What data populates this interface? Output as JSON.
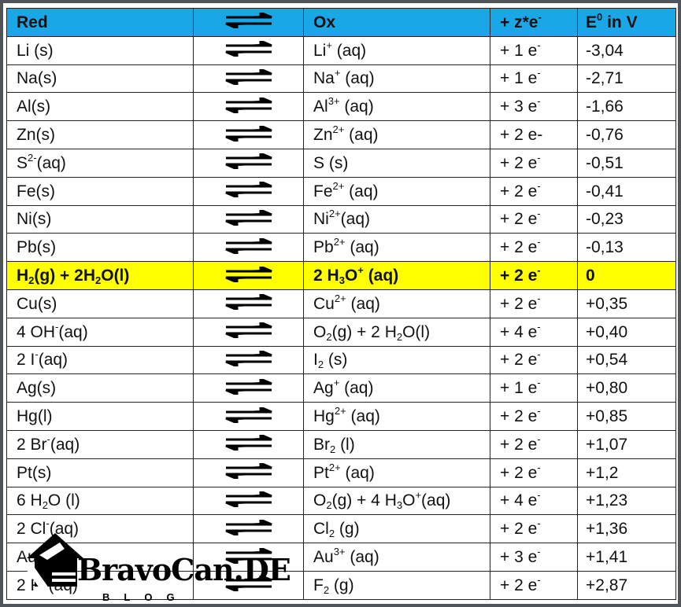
{
  "header": {
    "red": [
      {
        "t": "Red"
      }
    ],
    "ox": [
      {
        "t": "Ox"
      }
    ],
    "z": [
      {
        "t": "+ z*e"
      },
      {
        "t": "-",
        "s": "sup"
      }
    ],
    "e": [
      {
        "t": "E"
      },
      {
        "t": "0",
        "s": "sup"
      },
      {
        "t": " in V"
      }
    ]
  },
  "colors": {
    "header_bg": "#19a7e8",
    "highlight_bg": "#ffff00"
  },
  "arrow_icon": "equilibrium-arrows",
  "rows": [
    {
      "red": [
        {
          "t": "Li (s)"
        }
      ],
      "ox": [
        {
          "t": "Li"
        },
        {
          "t": "+",
          "s": "sup"
        },
        {
          "t": " (aq)"
        }
      ],
      "z": [
        {
          "t": "+ 1 e"
        },
        {
          "t": "-",
          "s": "sup"
        }
      ],
      "e": "-3,04"
    },
    {
      "red": [
        {
          "t": "Na(s)"
        }
      ],
      "ox": [
        {
          "t": "Na"
        },
        {
          "t": "+",
          "s": "sup"
        },
        {
          "t": " (aq)"
        }
      ],
      "z": [
        {
          "t": "+ 1 e"
        },
        {
          "t": "-",
          "s": "sup"
        }
      ],
      "e": "-2,71"
    },
    {
      "red": [
        {
          "t": "Al(s)"
        }
      ],
      "ox": [
        {
          "t": "Al"
        },
        {
          "t": "3+",
          "s": "sup"
        },
        {
          "t": " (aq)"
        }
      ],
      "z": [
        {
          "t": "+ 3 e"
        },
        {
          "t": "-",
          "s": "sup"
        }
      ],
      "e": "-1,66"
    },
    {
      "red": [
        {
          "t": "Zn(s)"
        }
      ],
      "ox": [
        {
          "t": "Zn"
        },
        {
          "t": "2+",
          "s": "sup"
        },
        {
          "t": " (aq)"
        }
      ],
      "z": [
        {
          "t": "+ 2 e-"
        }
      ],
      "e": "-0,76"
    },
    {
      "red": [
        {
          "t": "S"
        },
        {
          "t": "2-",
          "s": "sup"
        },
        {
          "t": "(aq)"
        }
      ],
      "ox": [
        {
          "t": "S (s)"
        }
      ],
      "z": [
        {
          "t": "+ 2 e"
        },
        {
          "t": "-",
          "s": "sup"
        }
      ],
      "e": "-0,51"
    },
    {
      "red": [
        {
          "t": "Fe(s)"
        }
      ],
      "ox": [
        {
          "t": "Fe"
        },
        {
          "t": "2+",
          "s": "sup"
        },
        {
          "t": " (aq)"
        }
      ],
      "z": [
        {
          "t": "+ 2 e"
        },
        {
          "t": "-",
          "s": "sup"
        }
      ],
      "e": "-0,41"
    },
    {
      "red": [
        {
          "t": "Ni(s)"
        }
      ],
      "ox": [
        {
          "t": "Ni"
        },
        {
          "t": "2+",
          "s": "sup"
        },
        {
          "t": "(aq)"
        }
      ],
      "z": [
        {
          "t": "+ 2 e"
        },
        {
          "t": "-",
          "s": "sup"
        }
      ],
      "e": "-0,23"
    },
    {
      "red": [
        {
          "t": "Pb(s)"
        }
      ],
      "ox": [
        {
          "t": "Pb"
        },
        {
          "t": "2+",
          "s": "sup"
        },
        {
          "t": " (aq)"
        }
      ],
      "z": [
        {
          "t": "+ 2 e"
        },
        {
          "t": "-",
          "s": "sup"
        }
      ],
      "e": "-0,13"
    },
    {
      "highlight": true,
      "red": [
        {
          "t": "H"
        },
        {
          "t": "2",
          "s": "sub"
        },
        {
          "t": "(g) + 2H"
        },
        {
          "t": "2",
          "s": "sub"
        },
        {
          "t": "O(l)"
        }
      ],
      "ox": [
        {
          "t": "2 H"
        },
        {
          "t": "3",
          "s": "sub"
        },
        {
          "t": "O"
        },
        {
          "t": "+",
          "s": "sup"
        },
        {
          "t": " (aq)"
        }
      ],
      "z": [
        {
          "t": "+ 2 e"
        },
        {
          "t": "-",
          "s": "sup"
        }
      ],
      "e": " 0"
    },
    {
      "red": [
        {
          "t": "Cu(s)"
        }
      ],
      "ox": [
        {
          "t": "Cu"
        },
        {
          "t": "2+",
          "s": "sup"
        },
        {
          "t": " (aq)"
        }
      ],
      "z": [
        {
          "t": "+ 2 e"
        },
        {
          "t": "-",
          "s": "sup"
        }
      ],
      "e": "+0,35"
    },
    {
      "red": [
        {
          "t": "4 OH"
        },
        {
          "t": "-",
          "s": "sup"
        },
        {
          "t": "(aq)"
        }
      ],
      "ox": [
        {
          "t": "O"
        },
        {
          "t": "2",
          "s": "sub"
        },
        {
          "t": "(g) + 2 H"
        },
        {
          "t": "2",
          "s": "sub"
        },
        {
          "t": "O(l)"
        }
      ],
      "z": [
        {
          "t": "+ 4 e"
        },
        {
          "t": "-",
          "s": "sup"
        }
      ],
      "e": "+0,40"
    },
    {
      "red": [
        {
          "t": "2 I"
        },
        {
          "t": "-",
          "s": "sup"
        },
        {
          "t": "(aq)"
        }
      ],
      "ox": [
        {
          "t": "I"
        },
        {
          "t": "2",
          "s": "sub"
        },
        {
          "t": " (s)"
        }
      ],
      "z": [
        {
          "t": "+ 2 e"
        },
        {
          "t": "-",
          "s": "sup"
        }
      ],
      "e": "+0,54"
    },
    {
      "red": [
        {
          "t": "Ag(s)"
        }
      ],
      "ox": [
        {
          "t": "Ag"
        },
        {
          "t": "+",
          "s": "sup"
        },
        {
          "t": " (aq)"
        }
      ],
      "z": [
        {
          "t": "+ 1 e"
        },
        {
          "t": "-",
          "s": "sup"
        }
      ],
      "e": "+0,80"
    },
    {
      "red": [
        {
          "t": "Hg(l)"
        }
      ],
      "ox": [
        {
          "t": "Hg"
        },
        {
          "t": "2+",
          "s": "sup"
        },
        {
          "t": " (aq)"
        }
      ],
      "z": [
        {
          "t": "+ 2 e"
        },
        {
          "t": "-",
          "s": "sup"
        }
      ],
      "e": "+0,85"
    },
    {
      "red": [
        {
          "t": "2 Br"
        },
        {
          "t": "-",
          "s": "sup"
        },
        {
          "t": "(aq)"
        }
      ],
      "ox": [
        {
          "t": "Br"
        },
        {
          "t": "2",
          "s": "sub"
        },
        {
          "t": " (l)"
        }
      ],
      "z": [
        {
          "t": "+ 2 e"
        },
        {
          "t": "-",
          "s": "sup"
        }
      ],
      "e": "+1,07"
    },
    {
      "red": [
        {
          "t": "Pt(s)"
        }
      ],
      "ox": [
        {
          "t": "Pt"
        },
        {
          "t": "2+",
          "s": "sup"
        },
        {
          "t": " (aq)"
        }
      ],
      "z": [
        {
          "t": "+ 2 e"
        },
        {
          "t": "-",
          "s": "sup"
        }
      ],
      "e": "+1,2"
    },
    {
      "red": [
        {
          "t": "6 H"
        },
        {
          "t": "2",
          "s": "sub"
        },
        {
          "t": "O (l)"
        }
      ],
      "ox": [
        {
          "t": "O"
        },
        {
          "t": "2",
          "s": "sub"
        },
        {
          "t": "(g) + 4 H"
        },
        {
          "t": "3",
          "s": "sub"
        },
        {
          "t": "O"
        },
        {
          "t": "+",
          "s": "sup"
        },
        {
          "t": "(aq)"
        }
      ],
      "z": [
        {
          "t": "+ 4 e"
        },
        {
          "t": "-",
          "s": "sup"
        }
      ],
      "e": "+1,23"
    },
    {
      "red": [
        {
          "t": "2 Cl"
        },
        {
          "t": "-",
          "s": "sup"
        },
        {
          "t": "(aq)"
        }
      ],
      "ox": [
        {
          "t": "Cl"
        },
        {
          "t": "2",
          "s": "sub"
        },
        {
          "t": " (g)"
        }
      ],
      "z": [
        {
          "t": "+ 2 e"
        },
        {
          "t": "-",
          "s": "sup"
        }
      ],
      "e": "+1,36"
    },
    {
      "red": [
        {
          "t": "Au(s)"
        }
      ],
      "ox": [
        {
          "t": "Au"
        },
        {
          "t": "3+",
          "s": "sup"
        },
        {
          "t": " (aq)"
        }
      ],
      "z": [
        {
          "t": "+ 3 e"
        },
        {
          "t": "-",
          "s": "sup"
        }
      ],
      "e": "+1,41"
    },
    {
      "red": [
        {
          "t": "2 F"
        },
        {
          "t": "-",
          "s": "sup"
        },
        {
          "t": " (aq)"
        }
      ],
      "ox": [
        {
          "t": "F"
        },
        {
          "t": "2",
          "s": "sub"
        },
        {
          "t": " (g)"
        }
      ],
      "z": [
        {
          "t": "+ 2 e"
        },
        {
          "t": "-",
          "s": "sup"
        }
      ],
      "e": "+2,87"
    }
  ],
  "watermark": {
    "logo_text": "BravoCan.DE",
    "sub_text": "BLOG"
  }
}
